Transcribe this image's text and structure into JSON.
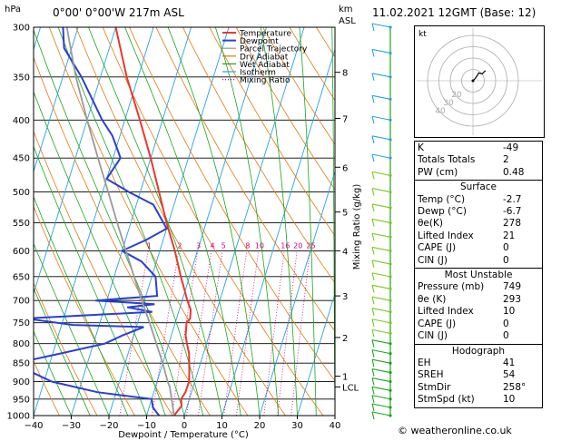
{
  "header": {
    "location": "0°00'  0°00'W  217m  ASL",
    "datetime": "11.02.2021  12GMT  (Base: 12)",
    "unit_hpa": "hPa",
    "unit_km": "km",
    "unit_asl": "ASL"
  },
  "chart_data": {
    "type": "skew-t",
    "xlabel": "Dewpoint / Temperature (°C)",
    "ylabel": "",
    "right_axis_label": "Mixing Ratio (g/kg)",
    "x_ticks": [
      -40,
      -30,
      -20,
      -10,
      0,
      10,
      20,
      30,
      40
    ],
    "x_tick_labels": [
      "−40",
      "−30",
      "−20",
      "−10",
      "0",
      "10",
      "20",
      "30",
      "40"
    ],
    "pressure_ticks": [
      300,
      350,
      400,
      450,
      500,
      550,
      600,
      650,
      700,
      750,
      800,
      850,
      900,
      950,
      1000
    ],
    "height_ticks": [
      {
        "label": "8",
        "p": 345
      },
      {
        "label": "7",
        "p": 398
      },
      {
        "label": "6",
        "p": 463
      },
      {
        "label": "5",
        "p": 532
      },
      {
        "label": "4",
        "p": 600
      },
      {
        "label": "3",
        "p": 690
      },
      {
        "label": "2",
        "p": 785
      },
      {
        "label": "1",
        "p": 885
      },
      {
        "label": "LCL",
        "p": 915
      }
    ],
    "mixing_ratio_labels": [
      "1",
      "2",
      "3",
      "4",
      "5",
      "8",
      "10",
      "16",
      "20",
      "25"
    ],
    "mixing_ratio_values": [
      1,
      2,
      3,
      4,
      5,
      8,
      10,
      16,
      20,
      25
    ],
    "legend": [
      "Temperature",
      "Dewpoint",
      "Parcel Trajectory",
      "Dry Adiabat",
      "Wet Adiabat",
      "Isotherm",
      "Mixing Ratio"
    ],
    "legend_colors": [
      "#e8392c",
      "#2a3fd4",
      "#9a9a9a",
      "#e07a10",
      "#1aa61a",
      "#27a3e0",
      "#d4007f"
    ],
    "series": [
      {
        "name": "Temperature",
        "color": "#e8392c",
        "points": [
          [
            1000,
            -2.7
          ],
          [
            970,
            -1.5
          ],
          [
            950,
            -2.2
          ],
          [
            930,
            -1.6
          ],
          [
            900,
            -1.5
          ],
          [
            875,
            -2.2
          ],
          [
            850,
            -3.0
          ],
          [
            825,
            -3.8
          ],
          [
            800,
            -5.2
          ],
          [
            780,
            -6.2
          ],
          [
            750,
            -7.0
          ],
          [
            740,
            -6.4
          ],
          [
            720,
            -7.0
          ],
          [
            700,
            -8.6
          ],
          [
            675,
            -10.4
          ],
          [
            650,
            -12.3
          ],
          [
            600,
            -16.0
          ],
          [
            550,
            -20.5
          ],
          [
            500,
            -25.0
          ],
          [
            450,
            -30.0
          ],
          [
            400,
            -36.0
          ],
          [
            350,
            -43.0
          ],
          [
            300,
            -50.0
          ]
        ]
      },
      {
        "name": "Dewpoint",
        "color": "#2a3fd4",
        "points": [
          [
            1000,
            -6.7
          ],
          [
            975,
            -9.0
          ],
          [
            950,
            -10.0
          ],
          [
            930,
            -25.0
          ],
          [
            900,
            -38.0
          ],
          [
            870,
            -45.0
          ],
          [
            850,
            -49.0
          ],
          [
            825,
            -38.0
          ],
          [
            800,
            -27.0
          ],
          [
            780,
            -23.0
          ],
          [
            760,
            -18.0
          ],
          [
            755,
            -37.0
          ],
          [
            740,
            -50.0
          ],
          [
            725,
            -17.0
          ],
          [
            715,
            -24.0
          ],
          [
            708,
            -17.0
          ],
          [
            700,
            -33.0
          ],
          [
            690,
            -17.0
          ],
          [
            650,
            -19.0
          ],
          [
            620,
            -24.0
          ],
          [
            600,
            -30.0
          ],
          [
            580,
            -24.5
          ],
          [
            560,
            -20.0
          ],
          [
            520,
            -25.5
          ],
          [
            500,
            -33.0
          ],
          [
            480,
            -40.0
          ],
          [
            450,
            -38.0
          ],
          [
            420,
            -42.0
          ],
          [
            400,
            -46.0
          ],
          [
            350,
            -55.0
          ],
          [
            320,
            -62.0
          ],
          [
            300,
            -64.0
          ]
        ]
      },
      {
        "name": "Parcel Trajectory",
        "color": "#9a9a9a",
        "points": [
          [
            1000,
            -2.7
          ],
          [
            915,
            -6.2
          ],
          [
            900,
            -7.2
          ],
          [
            850,
            -10.0
          ],
          [
            800,
            -13.3
          ],
          [
            750,
            -16.8
          ],
          [
            700,
            -20.7
          ],
          [
            650,
            -24.7
          ],
          [
            600,
            -29.0
          ],
          [
            550,
            -33.6
          ],
          [
            500,
            -38.5
          ],
          [
            450,
            -44.0
          ],
          [
            400,
            -50.0
          ],
          [
            350,
            -56.5
          ],
          [
            300,
            -63.0
          ]
        ]
      }
    ],
    "hodograph": {
      "rings_kt": [
        10,
        20,
        30,
        40
      ],
      "ring_labels": [
        "10",
        "20",
        "30",
        "40"
      ],
      "label_kt": "kt",
      "points_uv": [
        [
          0,
          0
        ],
        [
          2,
          2
        ],
        [
          4,
          5
        ],
        [
          5,
          7
        ],
        [
          8,
          6
        ],
        [
          11,
          9
        ]
      ]
    }
  },
  "indices": {
    "basic": [
      {
        "label": "K",
        "value": "-49"
      },
      {
        "label": "Totals Totals",
        "value": "2"
      },
      {
        "label": "PW (cm)",
        "value": "0.48"
      }
    ],
    "surface_title": "Surface",
    "surface": [
      {
        "label": "Temp (°C)",
        "value": "-2.7"
      },
      {
        "label": "Dewp (°C)",
        "value": "-6.7"
      },
      {
        "label": "θe(K)",
        "value": "278"
      },
      {
        "label": "Lifted Index",
        "value": "21"
      },
      {
        "label": "CAPE (J)",
        "value": "0"
      },
      {
        "label": "CIN (J)",
        "value": "0"
      }
    ],
    "unstable_title": "Most Unstable",
    "unstable": [
      {
        "label": "Pressure (mb)",
        "value": "749"
      },
      {
        "label": "θe (K)",
        "value": "293"
      },
      {
        "label": "Lifted Index",
        "value": "10"
      },
      {
        "label": "CAPE (J)",
        "value": "0"
      },
      {
        "label": "CIN (J)",
        "value": "0"
      }
    ],
    "hodograph_title": "Hodograph",
    "hodograph": [
      {
        "label": "EH",
        "value": "41"
      },
      {
        "label": "SREH",
        "value": "54"
      },
      {
        "label": "StmDir",
        "value": "258°"
      },
      {
        "label": "StmSpd (kt)",
        "value": "10"
      }
    ]
  },
  "footer": "© weatheronline.co.uk"
}
